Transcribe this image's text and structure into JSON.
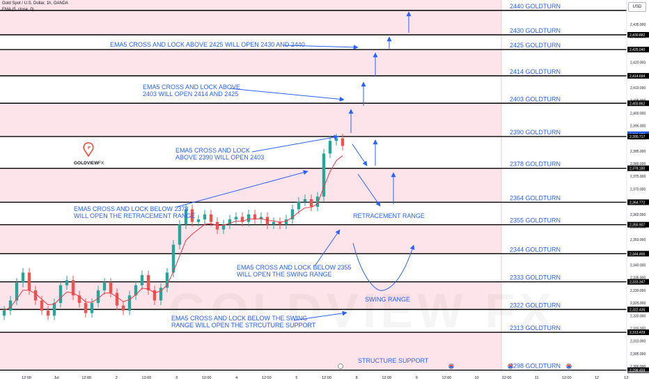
{
  "header": {
    "symbol_line": "Gold Spot / U.S. Dollar, 1h, OANDA",
    "indicator_line": "EMA (5, close, 0)"
  },
  "currency": "USD",
  "brand": {
    "name": "GOLDVIEW",
    "suffix": "FX",
    "watermark": "GOLDVIEW FX",
    "accent": "#e74c3c"
  },
  "colors": {
    "zone_fill": "#fde4ea",
    "text_blue": "#2962ff",
    "candle_up": "#26a69a",
    "candle_down": "#ef5350",
    "ema": "#f23645",
    "level_line": "#000000",
    "arrow": "#2962ff"
  },
  "chart_data": {
    "type": "candlestick",
    "title": "Gold Spot / U.S. Dollar, 1h, OANDA",
    "ylim": [
      2298,
      2445
    ],
    "y_ticks": [
      2300,
      2305,
      2310,
      2315,
      2320,
      2325,
      2330,
      2335,
      2340,
      2345,
      2350,
      2355,
      2360,
      2365,
      2370,
      2375,
      2380,
      2385,
      2390,
      2395,
      2400,
      2405,
      2410,
      2415,
      2420,
      2425,
      2430,
      2435
    ],
    "y_tick_labels": [
      "2,300.000",
      "2,305.000",
      "2,310.000",
      "2,315.000",
      "2,320.000",
      "2,325.000",
      "2,330.000",
      "2,335.000",
      "2,340.000",
      "2,345.000",
      "2,350.000",
      "2,355.000",
      "2,360.000",
      "2,365.000",
      "2,370.000",
      "2,375.000",
      "2,380.000",
      "2,385.000",
      "2,390.000",
      "2,395.000",
      "2,400.000",
      "2,405.000",
      "2,410.000",
      "2,415.000",
      "2,420.000",
      "2,425.000",
      "2,430.000",
      "2,435.000"
    ],
    "x_ticks": [
      "12:00",
      "Jul",
      "12:00",
      "2",
      "12:00",
      "3",
      "12:00",
      "4",
      "12:00",
      "5",
      "12:00",
      "8",
      "12:00",
      "9",
      "12:00",
      "10",
      "12:00",
      "11",
      "12:00",
      "12",
      "12:"
    ],
    "close_path": [
      2322,
      2326,
      2333,
      2337,
      2330,
      2326,
      2322,
      2320,
      2325,
      2332,
      2334,
      2328,
      2325,
      2321,
      2325,
      2330,
      2333,
      2329,
      2324,
      2322,
      2328,
      2332,
      2336,
      2330,
      2326,
      2331,
      2337,
      2348,
      2356,
      2362,
      2357,
      2358,
      2360,
      2357,
      2354,
      2356,
      2358,
      2359,
      2357,
      2360,
      2358,
      2359,
      2356,
      2357,
      2356,
      2358,
      2362,
      2365,
      2366,
      2363,
      2367,
      2384,
      2389,
      2390,
      2387
    ],
    "price_labels": [
      {
        "value": 2430.882,
        "text": "2,430.882",
        "highlight": false
      },
      {
        "value": 2425.04,
        "text": "2,425.040",
        "highlight": false
      },
      {
        "value": 2414.694,
        "text": "2,414.694",
        "highlight": false
      },
      {
        "value": 2403.862,
        "text": "2,403.862",
        "highlight": false
      },
      {
        "value": 2391.62,
        "text": "2,391.620",
        "highlight": true
      },
      {
        "value": 2390.717,
        "text": "2,390.717",
        "highlight": false
      },
      {
        "value": 2378.18,
        "text": "2,378.180",
        "highlight": false
      },
      {
        "value": 2364.772,
        "text": "2,364.772",
        "highlight": false
      },
      {
        "value": 2355.907,
        "text": "2,355.907",
        "highlight": false
      },
      {
        "value": 2344.466,
        "text": "2,344.466",
        "highlight": false
      },
      {
        "value": 2333.347,
        "text": "2,333.347",
        "highlight": false
      },
      {
        "value": 2322.436,
        "text": "2,322.436",
        "highlight": false
      },
      {
        "value": 2313.429,
        "text": "2,313.429",
        "highlight": false
      },
      {
        "value": 2298.459,
        "text": "2,298.459",
        "highlight": false
      }
    ],
    "levels": [
      {
        "value": 2440.5,
        "label": "2440 GOLDTURN"
      },
      {
        "value": 2430.88,
        "label": "2430 GOLDTURN"
      },
      {
        "value": 2425.04,
        "label": "2425 GOLDTURN"
      },
      {
        "value": 2414.69,
        "label": "2414 GOLDTURN"
      },
      {
        "value": 2403.86,
        "label": "2403 GOLDTURN"
      },
      {
        "value": 2390.72,
        "label": "2390 GOLDTURN"
      },
      {
        "value": 2378.18,
        "label": "2378 GOLDTURN"
      },
      {
        "value": 2364.77,
        "label": "2364 GOLDTURN"
      },
      {
        "value": 2355.91,
        "label": "2355 GOLDTURN"
      },
      {
        "value": 2344.47,
        "label": "2344 GOLDTURN"
      },
      {
        "value": 2333.35,
        "label": "2333 GOLDTURN"
      },
      {
        "value": 2322.44,
        "label": "2322 GOLDTURN"
      },
      {
        "value": 2313.43,
        "label": "2313 GOLDTURN"
      },
      {
        "value": 2298.46,
        "label": "2298 GOLDTURN"
      }
    ],
    "zones": [
      [
        2430.88,
        2445
      ],
      [
        2414.69,
        2425.04
      ],
      [
        2390.72,
        2403.86
      ],
      [
        2364.77,
        2378.18
      ],
      [
        2344.47,
        2355.91
      ],
      [
        2322.44,
        2333.35
      ],
      [
        2298.46,
        2313.43
      ]
    ],
    "annotations": [
      {
        "lines": [
          "EMA5 CROSS AND LOCK ABOVE 2425 WILL OPEN 2430 AND 2440"
        ]
      },
      {
        "lines": [
          "EMA5 CROSS AND LOCK ABOVE",
          "2403 WILL OPEN 2414 AND 2425"
        ]
      },
      {
        "lines": [
          "EMA5 CROSS AND LOCK",
          "ABOVE 2390 WILL OPEN 2403"
        ]
      },
      {
        "lines": [
          "EMA5 CROSS AND LOCK BELOW 2378",
          "WILL OPEN THE RETRACEMENT RANGE"
        ]
      },
      {
        "lines": [
          "RETRACEMENT RANGE"
        ]
      },
      {
        "lines": [
          "EMA5 CROSS AND LOCK BELOW 2355",
          "WILL OPEN THE SWING RANGE"
        ]
      },
      {
        "lines": [
          "SWING RANGE"
        ]
      },
      {
        "lines": [
          "EMA5 CROSS AND LOCK BELOW THE SWING",
          "RANGE WILL OPEN THE STRCUTURE SUPPORT"
        ]
      },
      {
        "lines": [
          "STRUCTURE SUPPORT"
        ]
      }
    ]
  }
}
